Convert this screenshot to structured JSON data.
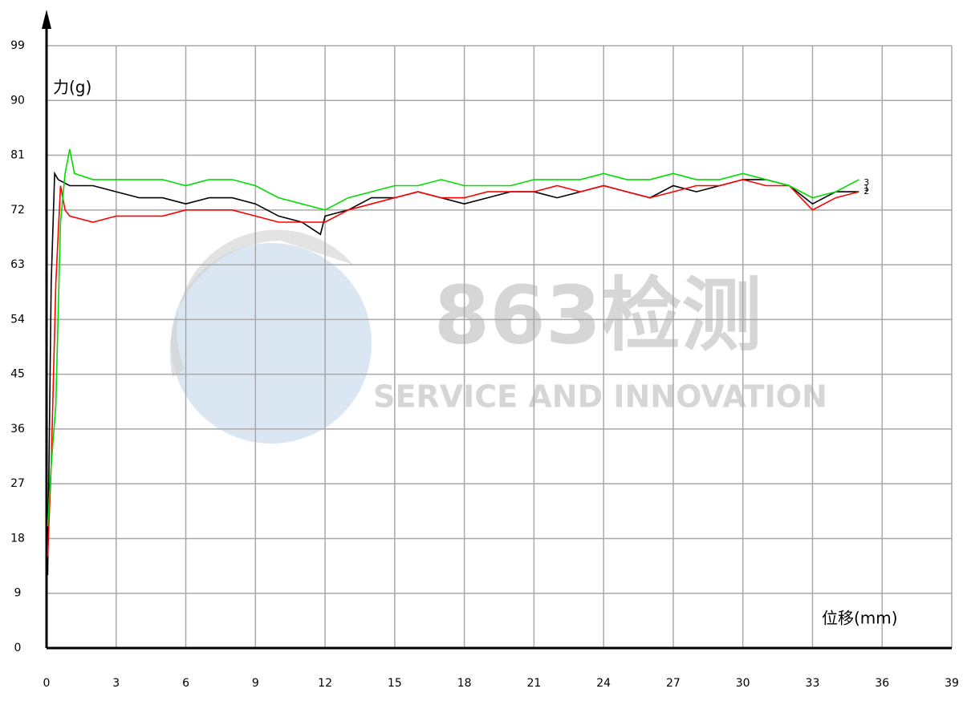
{
  "chart_data": {
    "type": "line",
    "y_label": "力(g)",
    "x_label": "位移(mm)",
    "xlim": [
      0,
      39
    ],
    "ylim": [
      0,
      99
    ],
    "xticks": [
      0,
      3,
      6,
      9,
      12,
      15,
      18,
      21,
      24,
      27,
      30,
      33,
      36,
      39
    ],
    "yticks": [
      0,
      9,
      18,
      27,
      36,
      45,
      54,
      63,
      72,
      81,
      90,
      99
    ],
    "grid": true,
    "series": [
      {
        "name": "1",
        "color": "#000000",
        "x": [
          0.05,
          0.2,
          0.35,
          0.5,
          1,
          2,
          3,
          4,
          5,
          6,
          7,
          8,
          9,
          10,
          11,
          11.8,
          12,
          13,
          14,
          15,
          16,
          17,
          18,
          19,
          20,
          21,
          22,
          23,
          24,
          25,
          26,
          27,
          28,
          29,
          30,
          31,
          32,
          33,
          34,
          35
        ],
        "values": [
          12,
          60,
          78,
          77,
          76,
          76,
          75,
          74,
          74,
          73,
          74,
          74,
          73,
          71,
          70,
          68,
          71,
          72,
          74,
          74,
          75,
          74,
          73,
          74,
          75,
          75,
          74,
          75,
          76,
          75,
          74,
          76,
          75,
          76,
          77,
          77,
          76,
          73,
          75,
          75
        ]
      },
      {
        "name": "2",
        "color": "#ff0000",
        "x": [
          0.05,
          0.2,
          0.4,
          0.6,
          0.8,
          1,
          2,
          3,
          4,
          5,
          6,
          7,
          8,
          9,
          10,
          11,
          12,
          13,
          14,
          15,
          16,
          17,
          18,
          19,
          20,
          21,
          22,
          23,
          24,
          25,
          26,
          27,
          28,
          29,
          30,
          31,
          32,
          33,
          34,
          35
        ],
        "values": [
          15,
          30,
          60,
          76,
          72,
          71,
          70,
          71,
          71,
          71,
          72,
          72,
          72,
          71,
          70,
          70,
          70,
          72,
          73,
          74,
          75,
          74,
          74,
          75,
          75,
          75,
          76,
          75,
          76,
          75,
          74,
          75,
          76,
          76,
          77,
          76,
          76,
          72,
          74,
          75
        ]
      },
      {
        "name": "3",
        "color": "#00dd00",
        "x": [
          0.05,
          0.2,
          0.4,
          0.6,
          0.8,
          1,
          1.2,
          2,
          3,
          4,
          5,
          6,
          7,
          8,
          9,
          10,
          11,
          12,
          13,
          14,
          15,
          16,
          17,
          18,
          19,
          20,
          21,
          22,
          23,
          24,
          25,
          26,
          27,
          28,
          29,
          30,
          31,
          32,
          33,
          34,
          35
        ],
        "values": [
          20,
          30,
          40,
          70,
          78,
          82,
          78,
          77,
          77,
          77,
          77,
          76,
          77,
          77,
          76,
          74,
          73,
          72,
          74,
          75,
          76,
          76,
          77,
          76,
          76,
          76,
          77,
          77,
          77,
          78,
          77,
          77,
          78,
          77,
          77,
          78,
          77,
          76,
          74,
          75,
          77
        ]
      }
    ]
  },
  "watermark": {
    "title": "863检测",
    "subtitle": "SERVICE AND INNOVATION"
  }
}
